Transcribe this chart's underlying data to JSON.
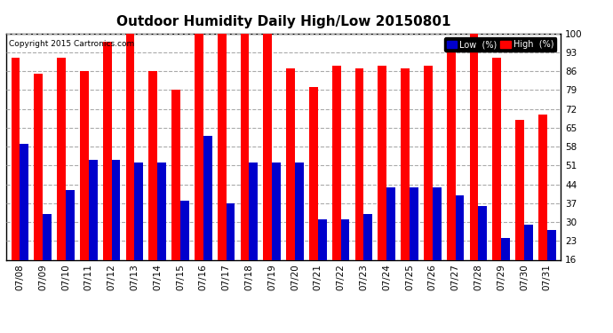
{
  "title": "Outdoor Humidity Daily High/Low 20150801",
  "copyright": "Copyright 2015 Cartronics.com",
  "dates": [
    "07/08",
    "07/09",
    "07/10",
    "07/11",
    "07/12",
    "07/13",
    "07/14",
    "07/15",
    "07/16",
    "07/17",
    "07/18",
    "07/19",
    "07/20",
    "07/21",
    "07/22",
    "07/23",
    "07/24",
    "07/25",
    "07/26",
    "07/27",
    "07/28",
    "07/29",
    "07/30",
    "07/31"
  ],
  "high": [
    91,
    85,
    91,
    86,
    97,
    100,
    86,
    79,
    100,
    100,
    100,
    100,
    87,
    80,
    88,
    87,
    88,
    87,
    88,
    95,
    100,
    91,
    68,
    70
  ],
  "low": [
    59,
    33,
    42,
    53,
    53,
    52,
    52,
    38,
    62,
    37,
    52,
    52,
    52,
    31,
    31,
    33,
    43,
    43,
    43,
    40,
    36,
    24,
    29,
    27
  ],
  "high_color": "#ff0000",
  "low_color": "#0000cc",
  "bg_color": "#ffffff",
  "grid_color": "#aaaaaa",
  "yticks": [
    16,
    23,
    30,
    37,
    44,
    51,
    58,
    65,
    72,
    79,
    86,
    93,
    100
  ],
  "ymin": 16,
  "ymax": 100,
  "bar_width": 0.38,
  "legend_low_label": "Low  (%)",
  "legend_high_label": "High  (%)"
}
